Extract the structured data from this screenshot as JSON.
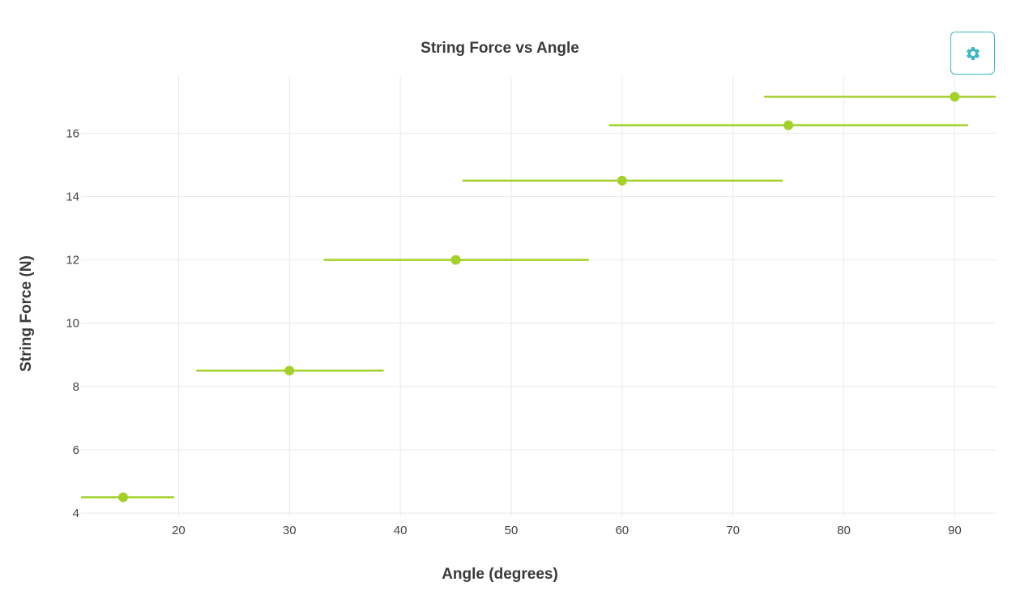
{
  "settings_button": {
    "icon": "gear-icon",
    "color": "#3fb7c0"
  },
  "chart_data": {
    "type": "scatter",
    "title": "String Force vs Angle",
    "xlabel": "Angle (degrees)",
    "ylabel": "String Force (N)",
    "xlim": [
      11.2,
      93.7
    ],
    "ylim": [
      3.9,
      17.8
    ],
    "xticks": [
      20,
      30,
      40,
      50,
      60,
      70,
      80,
      90
    ],
    "yticks": [
      4,
      6,
      8,
      10,
      12,
      14,
      16
    ],
    "grid": true,
    "color": "#a3d12a",
    "series": [
      {
        "points": [
          {
            "x": 15,
            "y": 4.5,
            "x_err_low": 11.2,
            "x_err_high": 19.6
          },
          {
            "x": 30,
            "y": 8.5,
            "x_err_low": 21.6,
            "x_err_high": 38.5
          },
          {
            "x": 45,
            "y": 12.0,
            "x_err_low": 33.1,
            "x_err_high": 57.0
          },
          {
            "x": 60,
            "y": 14.5,
            "x_err_low": 45.6,
            "x_err_high": 74.5
          },
          {
            "x": 75,
            "y": 16.25,
            "x_err_low": 58.8,
            "x_err_high": 91.2
          },
          {
            "x": 90,
            "y": 17.15,
            "x_err_low": 72.8,
            "x_err_high": 93.7
          }
        ]
      }
    ]
  }
}
